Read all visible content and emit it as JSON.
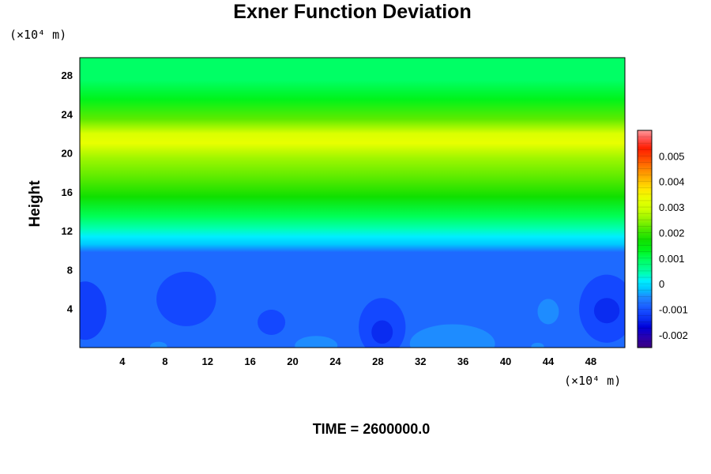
{
  "chart_data": {
    "type": "heatmap",
    "title": "Exner Function Deviation",
    "ylabel": "Height",
    "x_unit_label": "(×10⁴ m)",
    "y_unit_label": "(×10⁴ m)",
    "time_label": "TIME = 2600000.0",
    "x_ticks": [
      4,
      8,
      12,
      16,
      20,
      24,
      28,
      32,
      36,
      40,
      44,
      48
    ],
    "y_ticks": [
      4,
      8,
      12,
      16,
      20,
      24,
      28
    ],
    "xlim": [
      0,
      51.2
    ],
    "ylim": [
      0,
      29.8
    ],
    "colorbar": {
      "range": [
        -0.0025,
        0.006
      ],
      "ticks": [
        "0.005",
        "0.004",
        "0.003",
        "0.002",
        "0.001",
        "0",
        "-0.001",
        "-0.002"
      ],
      "tick_values": [
        0.005,
        0.004,
        0.003,
        0.002,
        0.001,
        0,
        -0.001,
        -0.002
      ]
    },
    "vertical_profile": [
      {
        "height": 0,
        "value": -0.0008
      },
      {
        "height": 9.8,
        "value": -0.0008
      },
      {
        "height": 10.6,
        "value": -0.0002
      },
      {
        "height": 11.4,
        "value": 0.0001
      },
      {
        "height": 12.2,
        "value": 0.0004
      },
      {
        "height": 13.5,
        "value": 0.001
      },
      {
        "height": 15.5,
        "value": 0.0017
      },
      {
        "height": 17.5,
        "value": 0.0022
      },
      {
        "height": 19.5,
        "value": 0.0026
      },
      {
        "height": 21.0,
        "value": 0.0033
      },
      {
        "height": 22.0,
        "value": 0.0031
      },
      {
        "height": 23.5,
        "value": 0.0022
      },
      {
        "height": 25.5,
        "value": 0.0013
      },
      {
        "height": 27.5,
        "value": 0.0009
      },
      {
        "height": 29.8,
        "value": 0.0009
      }
    ],
    "anomalies": [
      {
        "x": 0.5,
        "y": 3.8,
        "rx": 2.0,
        "ry": 3.0,
        "value": -0.0012
      },
      {
        "x": 10.0,
        "y": 5.0,
        "rx": 2.8,
        "ry": 2.8,
        "value": -0.0011
      },
      {
        "x": 18.0,
        "y": 2.6,
        "rx": 1.3,
        "ry": 1.3,
        "value": -0.0011
      },
      {
        "x": 28.4,
        "y": 2.1,
        "rx": 2.2,
        "ry": 3.0,
        "value": -0.0011
      },
      {
        "x": 28.4,
        "y": 1.6,
        "rx": 1.0,
        "ry": 1.2,
        "value": -0.0014
      },
      {
        "x": 49.5,
        "y": 4.0,
        "rx": 2.6,
        "ry": 3.5,
        "value": -0.0011
      },
      {
        "x": 49.5,
        "y": 3.8,
        "rx": 1.2,
        "ry": 1.3,
        "value": -0.0014
      },
      {
        "x": 35.0,
        "y": 0.4,
        "rx": 4.0,
        "ry": 2.0,
        "value": -0.0005
      },
      {
        "x": 22.2,
        "y": 0.2,
        "rx": 2.0,
        "ry": 1.0,
        "value": -0.0005
      },
      {
        "x": 44.0,
        "y": 3.7,
        "rx": 1.0,
        "ry": 1.3,
        "value": -0.0005
      },
      {
        "x": 7.4,
        "y": 0.1,
        "rx": 0.8,
        "ry": 0.5,
        "value": -0.0005
      },
      {
        "x": 43.0,
        "y": 0.1,
        "rx": 0.6,
        "ry": 0.4,
        "value": -0.0005
      }
    ]
  }
}
